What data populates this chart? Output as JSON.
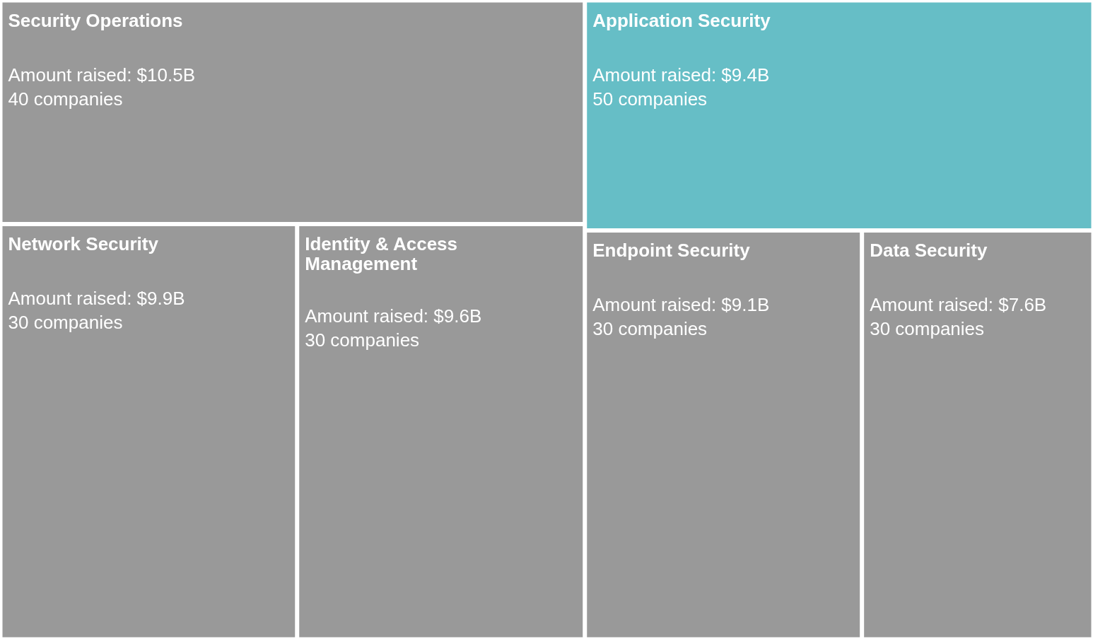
{
  "chart_data": {
    "type": "other",
    "categories": [
      "Security Operations",
      "Network Security",
      "Identity & Access Management",
      "Application Security",
      "Endpoint Security",
      "Data Security"
    ],
    "values": [
      10.5,
      9.9,
      9.6,
      9.4,
      9.1,
      7.6
    ],
    "value_labels": [
      "Amount raised: $10.5B",
      "Amount raised: $9.9B",
      "Amount raised: $9.6B",
      "Amount raised: $9.4B",
      "Amount raised: $9.1B",
      "Amount raised: $7.6B"
    ],
    "annotations": [
      "40 companies",
      "30 companies",
      "30 companies",
      "50 companies",
      "30 companies",
      "30 companies"
    ],
    "colors": [
      "#999999",
      "#999999",
      "#999999",
      "#66bec6",
      "#999999",
      "#999999"
    ]
  }
}
